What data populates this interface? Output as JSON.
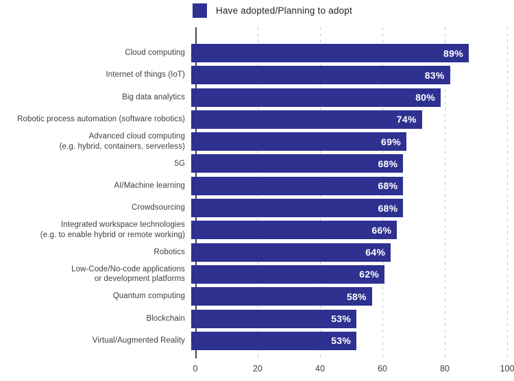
{
  "legend": {
    "label": "Have adopted/Planning to adopt",
    "swatch_color": "#2e3190"
  },
  "chart_data": {
    "type": "bar",
    "orientation": "horizontal",
    "title": "",
    "legend_entries": [
      "Have adopted/Planning to adopt"
    ],
    "categories": [
      "Cloud computing",
      "Internet of things (IoT)",
      "Big data analytics",
      "Robotic process automation (software robotics)",
      "Advanced cloud computing\n(e.g. hybrid, containers, serverless)",
      "5G",
      "AI/Machine learning",
      "Crowdsourcing",
      "Integrated workspace technologies\n(e.g. to enable hybrid or remote working)",
      "Robotics",
      "Low-Code/No-code applications\nor development platforms",
      "Quantum computing",
      "Blockchain",
      "Virtual/Augmented Reality"
    ],
    "values": [
      89,
      83,
      80,
      74,
      69,
      68,
      68,
      68,
      66,
      64,
      62,
      58,
      53,
      53
    ],
    "value_suffix": "%",
    "xlabel": "",
    "ylabel": "",
    "xlim": [
      0,
      100
    ],
    "x_ticks": [
      0,
      20,
      40,
      60,
      80,
      100
    ],
    "grid": "vertical dashed gridlines at each x tick, solid axis line at 0",
    "bar_color": "#2e3190",
    "value_label_color": "#ffffff",
    "legend_position": "top-center"
  }
}
